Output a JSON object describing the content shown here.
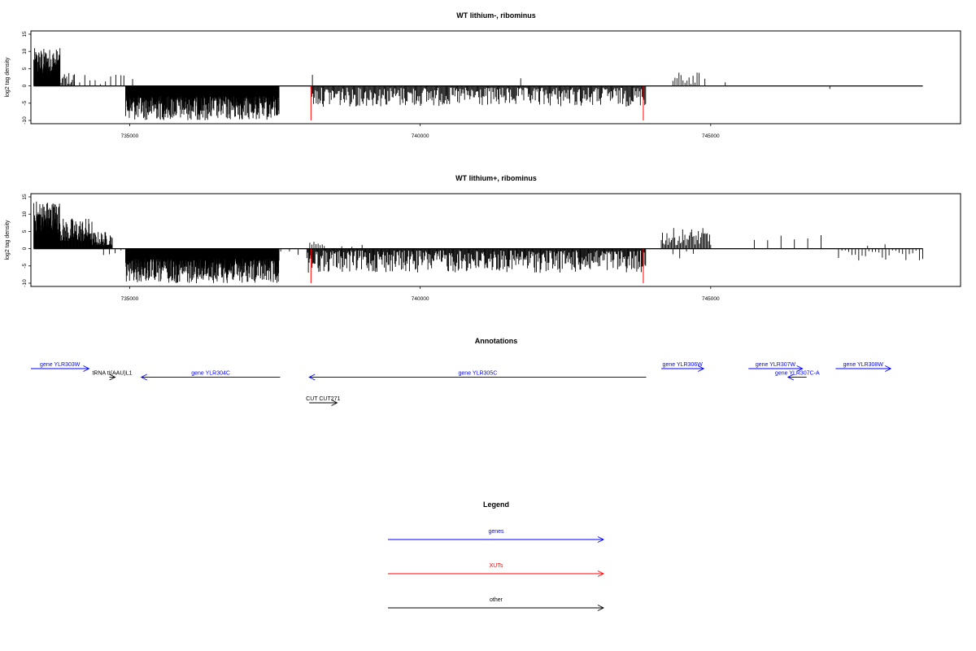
{
  "colors": {
    "gene": "#0000ff",
    "xut": "#ff0000",
    "other": "#000000",
    "signal": "#000000",
    "marker": "#ff0000"
  },
  "chart_data": [
    {
      "type": "bar",
      "title": "WT lithium-, ribominus",
      "ylabel": "log2 tag density",
      "xlim": [
        733300,
        749300
      ],
      "ylim": [
        -10,
        15
      ],
      "yticks": [
        -10,
        -5,
        0,
        5,
        10,
        15
      ],
      "ytick_labels": [
        "-10",
        "-5",
        "0",
        "5",
        "10",
        "15"
      ],
      "xticks": [
        735000,
        740000,
        745000
      ],
      "xtick_labels": [
        "735000",
        "740000",
        "745000"
      ],
      "grid": false,
      "baseline_span": [
        733350,
        748650
      ],
      "markers": [
        738120,
        743840
      ],
      "segments": [
        {
          "from": 733350,
          "to": 733800,
          "sign": 1,
          "min": 3,
          "max": 11,
          "count": 95
        },
        {
          "from": 733800,
          "to": 734050,
          "sign": 1,
          "min": 0.5,
          "max": 4,
          "count": 14
        },
        {
          "from": 734050,
          "to": 734850,
          "sign": 1,
          "min": 0.5,
          "max": 4,
          "count": 10
        },
        {
          "from": 734900,
          "to": 735050,
          "sign": 1,
          "min": 1,
          "max": 3,
          "count": 2
        },
        {
          "from": 734930,
          "to": 737570,
          "sign": -1,
          "min": 3,
          "max": 10,
          "count": 420
        },
        {
          "from": 738120,
          "to": 743880,
          "sign": -1,
          "min": 0.5,
          "max": 6,
          "count": 380
        },
        {
          "from": 738130,
          "to": 738160,
          "sign": 1,
          "min": 3,
          "max": 4,
          "count": 1
        },
        {
          "from": 741700,
          "to": 741760,
          "sign": 1,
          "min": 2,
          "max": 2.5,
          "count": 1
        },
        {
          "from": 744350,
          "to": 744800,
          "sign": 1,
          "min": 0.5,
          "max": 4,
          "count": 14
        },
        {
          "from": 744900,
          "to": 745250,
          "sign": 1,
          "min": 1,
          "max": 3,
          "count": 2
        },
        {
          "from": 747000,
          "to": 747100,
          "sign": -1,
          "min": 0.5,
          "max": 1,
          "count": 1
        }
      ]
    },
    {
      "type": "bar",
      "title": "WT lithium+, ribominus",
      "ylabel": "log2 tag density",
      "xlim": [
        733300,
        749300
      ],
      "ylim": [
        -10,
        15
      ],
      "yticks": [
        -10,
        -5,
        0,
        5,
        10,
        15
      ],
      "ytick_labels": [
        "-10",
        "-5",
        "0",
        "5",
        "10",
        "15"
      ],
      "xticks": [
        735000,
        740000,
        745000
      ],
      "xtick_labels": [
        "735000",
        "740000",
        "745000"
      ],
      "grid": false,
      "baseline_span": [
        733350,
        748650
      ],
      "markers": [
        738120,
        743840
      ],
      "segments": [
        {
          "from": 733350,
          "to": 733800,
          "sign": 1,
          "min": 4,
          "max": 14,
          "count": 110
        },
        {
          "from": 733800,
          "to": 734350,
          "sign": 1,
          "min": 2,
          "max": 9,
          "count": 70
        },
        {
          "from": 734350,
          "to": 734700,
          "sign": 1,
          "min": 1,
          "max": 5,
          "count": 40
        },
        {
          "from": 734550,
          "to": 734850,
          "sign": -1,
          "min": 0.5,
          "max": 2,
          "count": 4
        },
        {
          "from": 734930,
          "to": 737570,
          "sign": -1,
          "min": 3,
          "max": 10,
          "count": 430
        },
        {
          "from": 737600,
          "to": 737900,
          "sign": -1,
          "min": 0.5,
          "max": 2,
          "count": 3
        },
        {
          "from": 738050,
          "to": 743880,
          "sign": -1,
          "min": 0.5,
          "max": 7,
          "count": 460
        },
        {
          "from": 738100,
          "to": 738350,
          "sign": 1,
          "min": 0.5,
          "max": 2,
          "count": 8
        },
        {
          "from": 738650,
          "to": 739000,
          "sign": 1,
          "min": 0.5,
          "max": 1.5,
          "count": 3
        },
        {
          "from": 744150,
          "to": 745000,
          "sign": 1,
          "min": 1,
          "max": 6,
          "count": 45
        },
        {
          "from": 744350,
          "to": 744700,
          "sign": -1,
          "min": 0.5,
          "max": 3,
          "count": 4
        },
        {
          "from": 745750,
          "to": 746900,
          "sign": 1,
          "min": 0.5,
          "max": 4,
          "count": 6
        },
        {
          "from": 747200,
          "to": 748650,
          "sign": -1,
          "min": 0.5,
          "max": 3.5,
          "count": 26
        },
        {
          "from": 747700,
          "to": 748000,
          "sign": 1,
          "min": 0.5,
          "max": 1.5,
          "count": 2
        }
      ]
    }
  ],
  "annotations": {
    "title": "Annotations",
    "features": [
      {
        "label": "gene YLR303W",
        "kind": "gene",
        "strand": "+",
        "start": 733300,
        "end": 734300,
        "row": 0
      },
      {
        "label": "tRNA tI(AAU)L1",
        "kind": "other",
        "strand": "+",
        "start": 734650,
        "end": 734750,
        "row": 1
      },
      {
        "label": "gene YLR304C",
        "kind": "gene",
        "strand": "-",
        "start": 735200,
        "end": 737590,
        "row": 1
      },
      {
        "label": "gene YLR305C",
        "kind": "gene",
        "strand": "-",
        "start": 738090,
        "end": 743890,
        "row": 1
      },
      {
        "label": "CUT CUT271",
        "kind": "other",
        "strand": "+",
        "start": 738090,
        "end": 738570,
        "row": 4
      },
      {
        "label": "gene YLR306W",
        "kind": "gene",
        "strand": "+",
        "start": 744150,
        "end": 744880,
        "row": 0
      },
      {
        "label": "gene YLR307W",
        "kind": "gene",
        "strand": "+",
        "start": 745650,
        "end": 746580,
        "row": 0
      },
      {
        "label": "gene YLR307C-A",
        "kind": "gene",
        "strand": "-",
        "start": 746330,
        "end": 746650,
        "row": 1
      },
      {
        "label": "gene YLR308W",
        "kind": "gene",
        "strand": "+",
        "start": 747150,
        "end": 748100,
        "row": 0
      }
    ]
  },
  "legend": {
    "title": "Legend",
    "items": [
      {
        "label": "genes",
        "kind": "gene"
      },
      {
        "label": "XUTs",
        "kind": "xut"
      },
      {
        "label": "other",
        "kind": "other"
      }
    ]
  }
}
